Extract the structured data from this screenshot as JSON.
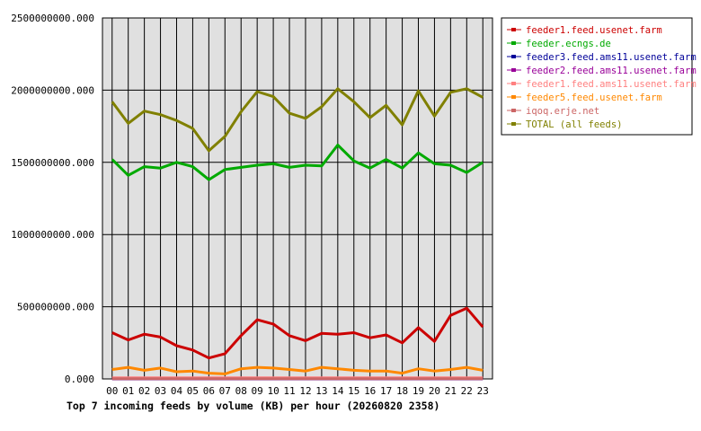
{
  "chart_data": {
    "type": "line",
    "title": "Top 7 incoming feeds by volume (KB) per hour (20260820 2358)",
    "xlabel": "",
    "ylabel": "",
    "categories": [
      "00",
      "01",
      "02",
      "03",
      "04",
      "05",
      "06",
      "07",
      "08",
      "09",
      "10",
      "11",
      "12",
      "13",
      "14",
      "15",
      "16",
      "17",
      "18",
      "19",
      "20",
      "21",
      "22",
      "23"
    ],
    "ylim": [
      0,
      2500000000
    ],
    "yticks": [
      0,
      500000000,
      1000000000,
      1500000000,
      2000000000,
      2500000000
    ],
    "ytick_labels": [
      "0.000",
      "500000000.000",
      "1000000000.000",
      "1500000000.000",
      "2000000000.000",
      "2500000000.000"
    ],
    "grid": true,
    "legend_position": "right",
    "series": [
      {
        "name": "feeder1.feed.usenet.farm",
        "color": "#cc0000",
        "values": [
          320000000,
          270000000,
          310000000,
          290000000,
          230000000,
          200000000,
          145000000,
          175000000,
          300000000,
          410000000,
          380000000,
          300000000,
          265000000,
          315000000,
          310000000,
          320000000,
          285000000,
          305000000,
          250000000,
          355000000,
          260000000,
          440000000,
          490000000,
          360000000
        ]
      },
      {
        "name": "feeder.ecngs.de",
        "color": "#00aa00",
        "values": [
          1520000000,
          1410000000,
          1470000000,
          1460000000,
          1500000000,
          1470000000,
          1380000000,
          1450000000,
          1465000000,
          1480000000,
          1490000000,
          1465000000,
          1480000000,
          1475000000,
          1620000000,
          1510000000,
          1460000000,
          1520000000,
          1460000000,
          1565000000,
          1490000000,
          1480000000,
          1430000000,
          1500000000
        ]
      },
      {
        "name": "feeder3.feed.ams11.usenet.farm",
        "color": "#000099",
        "values": [
          0,
          0,
          0,
          0,
          0,
          0,
          0,
          0,
          0,
          0,
          0,
          0,
          0,
          0,
          0,
          0,
          0,
          0,
          0,
          0,
          0,
          0,
          0,
          0
        ]
      },
      {
        "name": "feeder2.feed.ams11.usenet.farm",
        "color": "#990099",
        "values": [
          2000000,
          2000000,
          2000000,
          2000000,
          2000000,
          2000000,
          2000000,
          2000000,
          2000000,
          2000000,
          2000000,
          2000000,
          2000000,
          2000000,
          2000000,
          2000000,
          2000000,
          2000000,
          2000000,
          2000000,
          2000000,
          2000000,
          2000000,
          2000000
        ]
      },
      {
        "name": "feeder1.feed.ams11.usenet.farm",
        "color": "#ff8080",
        "values": [
          8000000,
          8000000,
          8000000,
          8000000,
          8000000,
          8000000,
          8000000,
          8000000,
          8000000,
          8000000,
          8000000,
          8000000,
          8000000,
          8000000,
          8000000,
          8000000,
          8000000,
          8000000,
          8000000,
          8000000,
          8000000,
          8000000,
          8000000,
          8000000
        ]
      },
      {
        "name": "feeder5.feed.usenet.farm",
        "color": "#ff8800",
        "values": [
          65000000,
          80000000,
          60000000,
          75000000,
          50000000,
          55000000,
          40000000,
          35000000,
          70000000,
          80000000,
          75000000,
          65000000,
          55000000,
          80000000,
          70000000,
          60000000,
          55000000,
          55000000,
          40000000,
          70000000,
          55000000,
          65000000,
          80000000,
          60000000
        ]
      },
      {
        "name": "iqoq.erje.net",
        "color": "#cc6666",
        "values": [
          1000000,
          1000000,
          1000000,
          1000000,
          1000000,
          1000000,
          1000000,
          1000000,
          1000000,
          1000000,
          1000000,
          1000000,
          1000000,
          1000000,
          1000000,
          1000000,
          1000000,
          1000000,
          1000000,
          1000000,
          1000000,
          1000000,
          1000000,
          1000000
        ]
      },
      {
        "name": "TOTAL (all feeds)",
        "color": "#808000",
        "values": [
          1920000000,
          1770000000,
          1855000000,
          1830000000,
          1790000000,
          1735000000,
          1580000000,
          1680000000,
          1850000000,
          1990000000,
          1955000000,
          1840000000,
          1805000000,
          1885000000,
          2010000000,
          1920000000,
          1810000000,
          1895000000,
          1760000000,
          1995000000,
          1820000000,
          1985000000,
          2010000000,
          1950000000
        ]
      }
    ]
  }
}
